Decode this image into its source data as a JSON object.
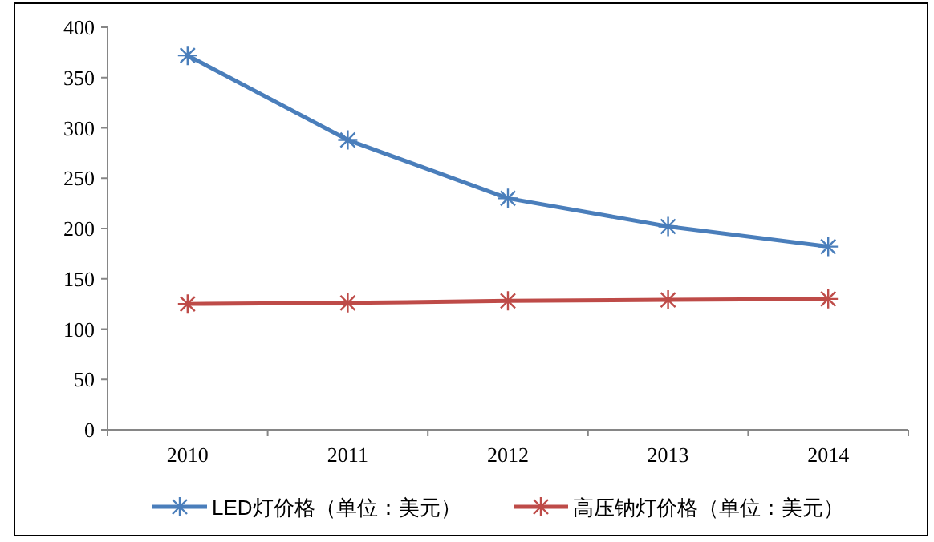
{
  "chart_data": {
    "type": "line",
    "categories": [
      "2010",
      "2011",
      "2012",
      "2013",
      "2014"
    ],
    "series": [
      {
        "name": "LED灯价格（单位：美元）",
        "color": "#4a7ebb",
        "values": [
          372,
          288,
          230,
          202,
          182
        ]
      },
      {
        "name": "高压钠灯价格（单位：美元）",
        "color": "#be4b48",
        "values": [
          125,
          126,
          128,
          129,
          130
        ]
      }
    ],
    "ylim": [
      0,
      400
    ],
    "yticks": [
      0,
      50,
      100,
      150,
      200,
      250,
      300,
      350,
      400
    ],
    "grid": false,
    "legend": "bottom",
    "marker": "cross",
    "line_style": "solid"
  }
}
